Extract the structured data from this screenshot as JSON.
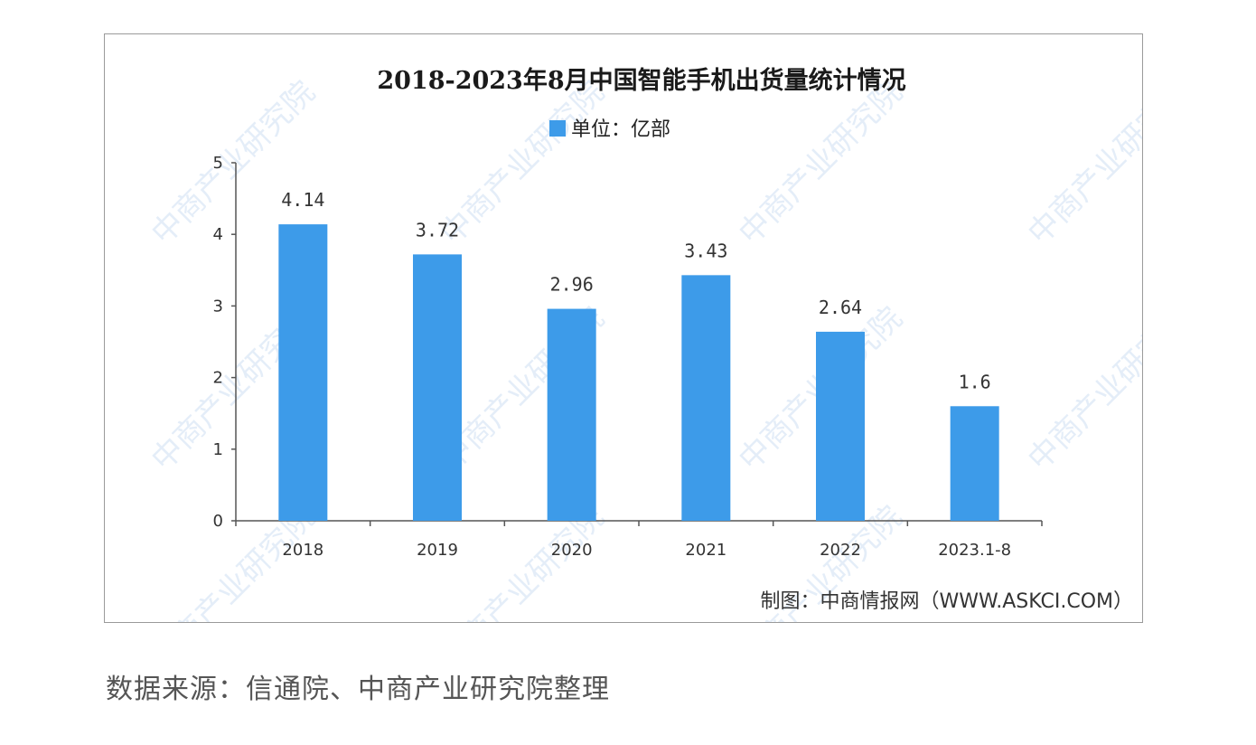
{
  "chart_data": {
    "type": "bar",
    "title": "2018-2023年8月中国智能手机出货量统计情况",
    "legend": {
      "label": "单位：亿部",
      "position": "top-center"
    },
    "categories": [
      "2018",
      "2019",
      "2020",
      "2021",
      "2022",
      "2023.1-8"
    ],
    "series": [
      {
        "name": "单位：亿部",
        "values": [
          4.14,
          3.72,
          2.96,
          3.43,
          2.64,
          1.6
        ]
      }
    ],
    "data_labels": [
      "4.14",
      "3.72",
      "2.96",
      "3.43",
      "2.64",
      "1.6"
    ],
    "yticks": [
      "0",
      "1",
      "2",
      "3",
      "4",
      "5"
    ],
    "ylim": [
      0,
      5
    ],
    "grid": false,
    "bar_color": "#3d9be9",
    "credit": "制图：中商情报网（WWW.ASKCI.COM）"
  },
  "watermark": {
    "text": "中商产业研究院",
    "color": "#cfe0f3"
  },
  "source_note": "数据来源：信通院、中商产业研究院整理"
}
